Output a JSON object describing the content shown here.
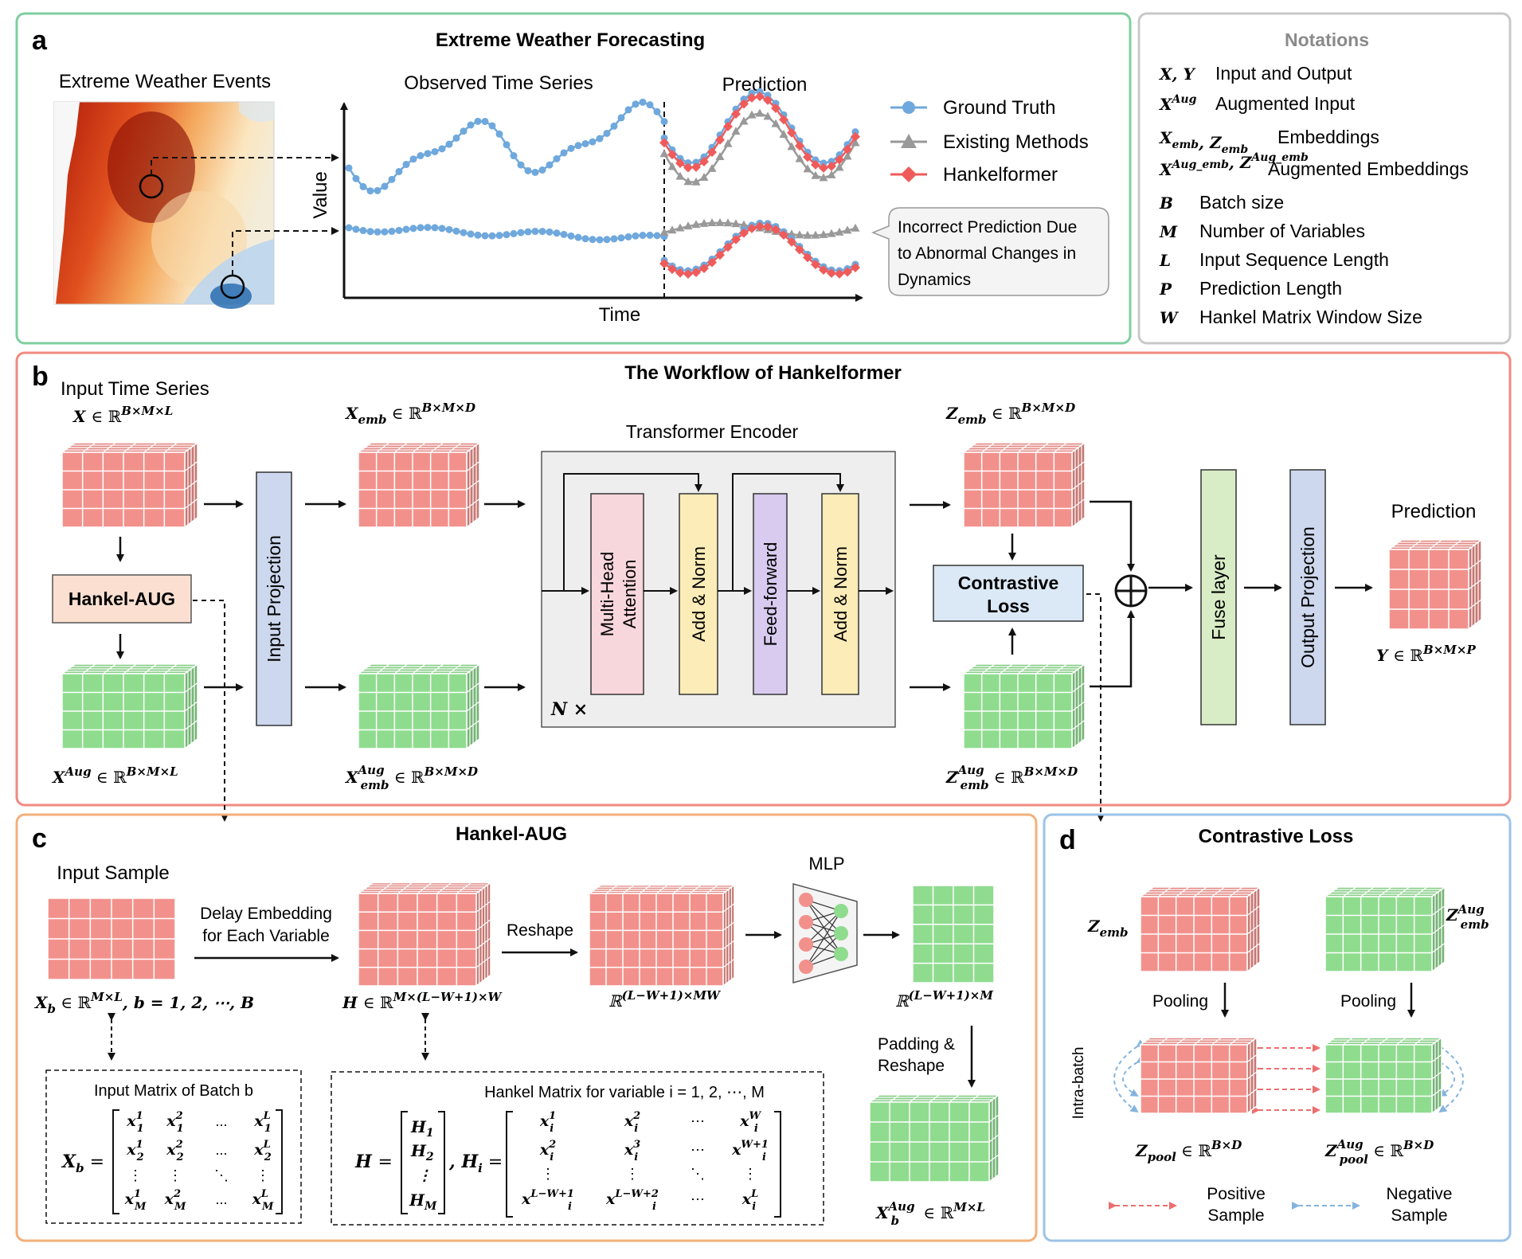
{
  "panel_a": {
    "letter": "a",
    "title": "Extreme Weather Forecasting",
    "map_label": "Extreme Weather Events",
    "observed_label": "Observed Time Series",
    "prediction_label": "Prediction",
    "y_axis": "Value",
    "x_axis": "Time",
    "legend": [
      "Ground Truth",
      "Existing Methods",
      "Hankelformer"
    ],
    "callout_lines": [
      "Incorrect Prediction Due",
      "to Abnormal Changes in",
      "Dynamics"
    ]
  },
  "notations": {
    "title": "Notations",
    "items": [
      {
        "symbol": "X, Y",
        "text": "Input and Output"
      },
      {
        "symbol": "X^Aug",
        "text": "Augmented Input"
      },
      {
        "symbol": "X_emb, Z_emb",
        "text": "Embeddings"
      },
      {
        "symbol": "X^Aug_emb, Z^Aug_emb",
        "text": "Augmented Embeddings"
      },
      {
        "symbol": "B",
        "text": "Batch size"
      },
      {
        "symbol": "M",
        "text": "Number of Variables"
      },
      {
        "symbol": "L",
        "text": "Input Sequence Length"
      },
      {
        "symbol": "P",
        "text": "Prediction Length"
      },
      {
        "symbol": "W",
        "text": "Hankel Matrix Window Size"
      }
    ]
  },
  "panel_b": {
    "letter": "b",
    "title": "The Workflow of Hankelformer",
    "input_series": "Input Time Series",
    "hankel_aug": "Hankel-AUG",
    "input_projection": "Input Projection",
    "transformer_encoder": "Transformer Encoder",
    "mha": [
      "Multi-Head",
      "Attention"
    ],
    "add_norm": "Add & Norm",
    "feed_forward": "Feed-forward",
    "n_times": "N ×",
    "contrastive_loss": [
      "Contrastive",
      "Loss"
    ],
    "fuse_layer": "Fuse layer",
    "output_projection": "Output Projection",
    "prediction": "Prediction"
  },
  "panel_c": {
    "letter": "c",
    "title": "Hankel-AUG",
    "input_sample": "Input Sample",
    "delay_embedding": [
      "Delay Embedding",
      "for Each Variable"
    ],
    "reshape": "Reshape",
    "mlp": "MLP",
    "padding_reshape": [
      "Padding &",
      "Reshape"
    ],
    "input_matrix_label": "Input Matrix of Batch b",
    "hankel_matrix_label": "Hankel Matrix for variable i = 1, 2, ⋯, M"
  },
  "panel_d": {
    "letter": "d",
    "title": "Contrastive Loss",
    "pooling": "Pooling",
    "intra_batch": "Intra-batch",
    "positive": [
      "Positive",
      "Sample"
    ],
    "negative": [
      "Negative",
      "Sample"
    ]
  },
  "colors": {
    "panel_a_border": "#7fcf9f",
    "notation_border": "#c8c8c8",
    "panel_b_border": "#f08a80",
    "panel_c_border": "#f3b07a",
    "panel_d_border": "#9cc3e8",
    "cube_red": "#f2918c",
    "cube_green": "#8fdc8f",
    "ground_truth": "#6fa8dc",
    "existing": "#999999",
    "hankelformer": "#ef5b5b"
  }
}
